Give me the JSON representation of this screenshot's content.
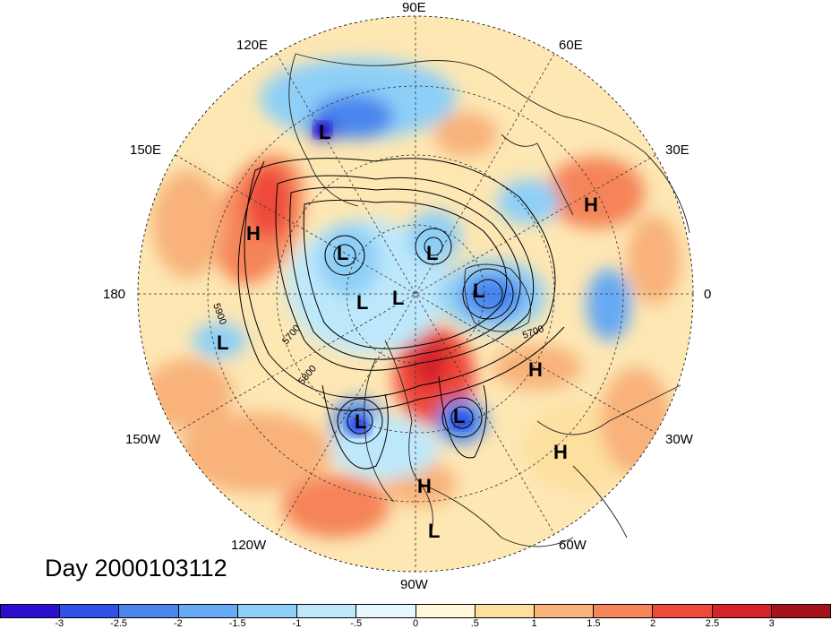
{
  "title": "Day 2000103112",
  "longitude_labels": {
    "top": "90E",
    "top_left": "120E",
    "top_right": "60E",
    "left_upper": "150E",
    "right_upper": "30E",
    "left": "180",
    "right": "0",
    "left_lower": "150W",
    "right_lower": "30W",
    "bottom_left": "120W",
    "bottom_right": "60W",
    "bottom": "90W"
  },
  "contour_labels": [
    "5900",
    "5700",
    "5800",
    "5700"
  ],
  "pressure_systems": [
    {
      "type": "L"
    },
    {
      "type": "H"
    },
    {
      "type": "L"
    },
    {
      "type": "L"
    },
    {
      "type": "L"
    },
    {
      "type": "L"
    },
    {
      "type": "L"
    },
    {
      "type": "H"
    },
    {
      "type": "L"
    },
    {
      "type": "H"
    },
    {
      "type": "L"
    },
    {
      "type": "L"
    },
    {
      "type": "H"
    },
    {
      "type": "H"
    },
    {
      "type": "L"
    }
  ],
  "colorbar": {
    "ticks": [
      "-3",
      "-2.5",
      "-2",
      "-1.5",
      "-1",
      "-.5",
      "0",
      ".5",
      "1",
      "1.5",
      "2",
      "2.5",
      "3"
    ],
    "colors": [
      "#2a0fd0",
      "#2f51e8",
      "#4a86ee",
      "#66a9f4",
      "#8ecff7",
      "#bde8fb",
      "#e6f7fd",
      "#fff8d8",
      "#fde0a0",
      "#f8b27a",
      "#f58458",
      "#ee4a3a",
      "#d5232a",
      "#a5121c"
    ]
  }
}
